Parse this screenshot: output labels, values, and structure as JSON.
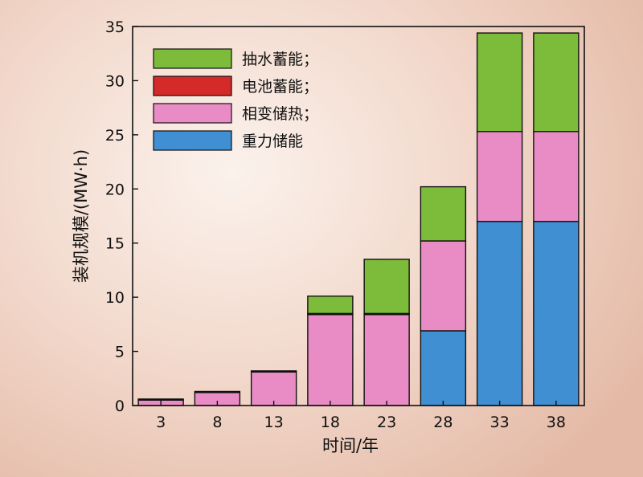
{
  "chart_data": {
    "type": "bar",
    "stacked": true,
    "categories": [
      "3",
      "8",
      "13",
      "18",
      "23",
      "28",
      "33",
      "38"
    ],
    "series": [
      {
        "name": "重力储能",
        "color": "#3f8fd2",
        "values": [
          0,
          0,
          0,
          0,
          0,
          6.9,
          17.0,
          17.0
        ]
      },
      {
        "name": "相变储热",
        "color": "#e98cc6",
        "values": [
          0.5,
          1.2,
          3.1,
          8.4,
          8.4,
          8.3,
          8.3,
          8.3
        ]
      },
      {
        "name": "电池蓄能",
        "color": "#d42a2a",
        "values": [
          0.1,
          0.1,
          0.1,
          0.1,
          0.1,
          0.0,
          0.0,
          0.0
        ]
      },
      {
        "name": "抽水蓄能",
        "color": "#7dbb3a",
        "values": [
          0,
          0,
          0,
          1.6,
          5.0,
          5.0,
          9.1,
          9.1
        ]
      }
    ],
    "legend": {
      "position": "top-left",
      "entries": [
        {
          "label": "抽水蓄能；",
          "color": "#7dbb3a"
        },
        {
          "label": "电池蓄能；",
          "color": "#d42a2a"
        },
        {
          "label": "相变储热；",
          "color": "#e98cc6"
        },
        {
          "label": "重力储能",
          "color": "#3f8fd2"
        }
      ]
    },
    "xlabel": "时间/年",
    "ylabel": "装机规模/(MW·h)",
    "ylim": [
      0,
      35
    ],
    "yticks": [
      0,
      5,
      10,
      15,
      20,
      25,
      30,
      35
    ],
    "grid": false
  }
}
